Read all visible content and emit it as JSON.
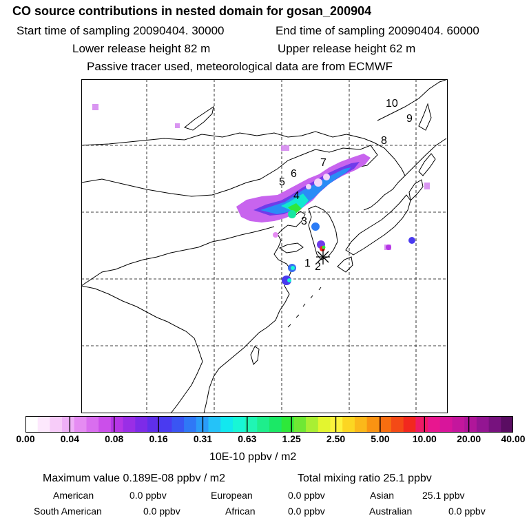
{
  "header": {
    "title": "CO  source contributions in nested domain for gosan_200904",
    "start_time": "Start time of sampling 20090404. 30000",
    "end_time": "End time of sampling 20090404. 60000",
    "lower_release": "Lower release height   82 m",
    "upper_release": "Upper release height   62 m",
    "tracer_note": "Passive tracer used, meteorological data are from ECMWF"
  },
  "map": {
    "trajectory_labels": [
      "1",
      "2",
      "3",
      "4",
      "5",
      "6",
      "7",
      "8",
      "9",
      "10"
    ],
    "receptor_marker": "gosan-receptor-star"
  },
  "colorbar": {
    "ticks": [
      "0.00",
      "0.04",
      "0.08",
      "0.16",
      "0.31",
      "0.63",
      "1.25",
      "2.50",
      "5.00",
      "10.00",
      "20.00",
      "40.00"
    ],
    "colors": [
      "#ffffff",
      "#fde8fd",
      "#f7ccf9",
      "#efb0f7",
      "#e58cf2",
      "#d96eef",
      "#cb4fea",
      "#b636e6",
      "#9a2ee6",
      "#7d2be8",
      "#5f2fea",
      "#4a3af0",
      "#3a55f3",
      "#2f78f6",
      "#2a9cf8",
      "#25c2f8",
      "#12e8ef",
      "#18f6d6",
      "#20f5b4",
      "#1eee8c",
      "#1be866",
      "#2ee83a",
      "#6fe834",
      "#a9ef33",
      "#e3f52f",
      "#fdf33d",
      "#fcd622",
      "#fbb81a",
      "#f99312",
      "#f76e10",
      "#f44a16",
      "#f2281e",
      "#ee1a66",
      "#e8168f",
      "#d8159b",
      "#c4169d",
      "#b0169a",
      "#931592",
      "#77127e",
      "#5a0d62"
    ],
    "unit": "10E-10 ppbv / m2"
  },
  "summary": {
    "max_value": "Maximum value  0.189E-08 ppbv / m2",
    "total_mixing": "Total mixing ratio       25.1 ppbv",
    "regions": [
      {
        "name": "American",
        "value": "0.0 ppbv"
      },
      {
        "name": "European",
        "value": "0.0 ppbv"
      },
      {
        "name": "Asian",
        "value": "25.1 ppbv"
      },
      {
        "name": "South American",
        "value": "0.0 ppbv"
      },
      {
        "name": "African",
        "value": "0.0 ppbv"
      },
      {
        "name": "Australian",
        "value": "0.0 ppbv"
      }
    ]
  }
}
